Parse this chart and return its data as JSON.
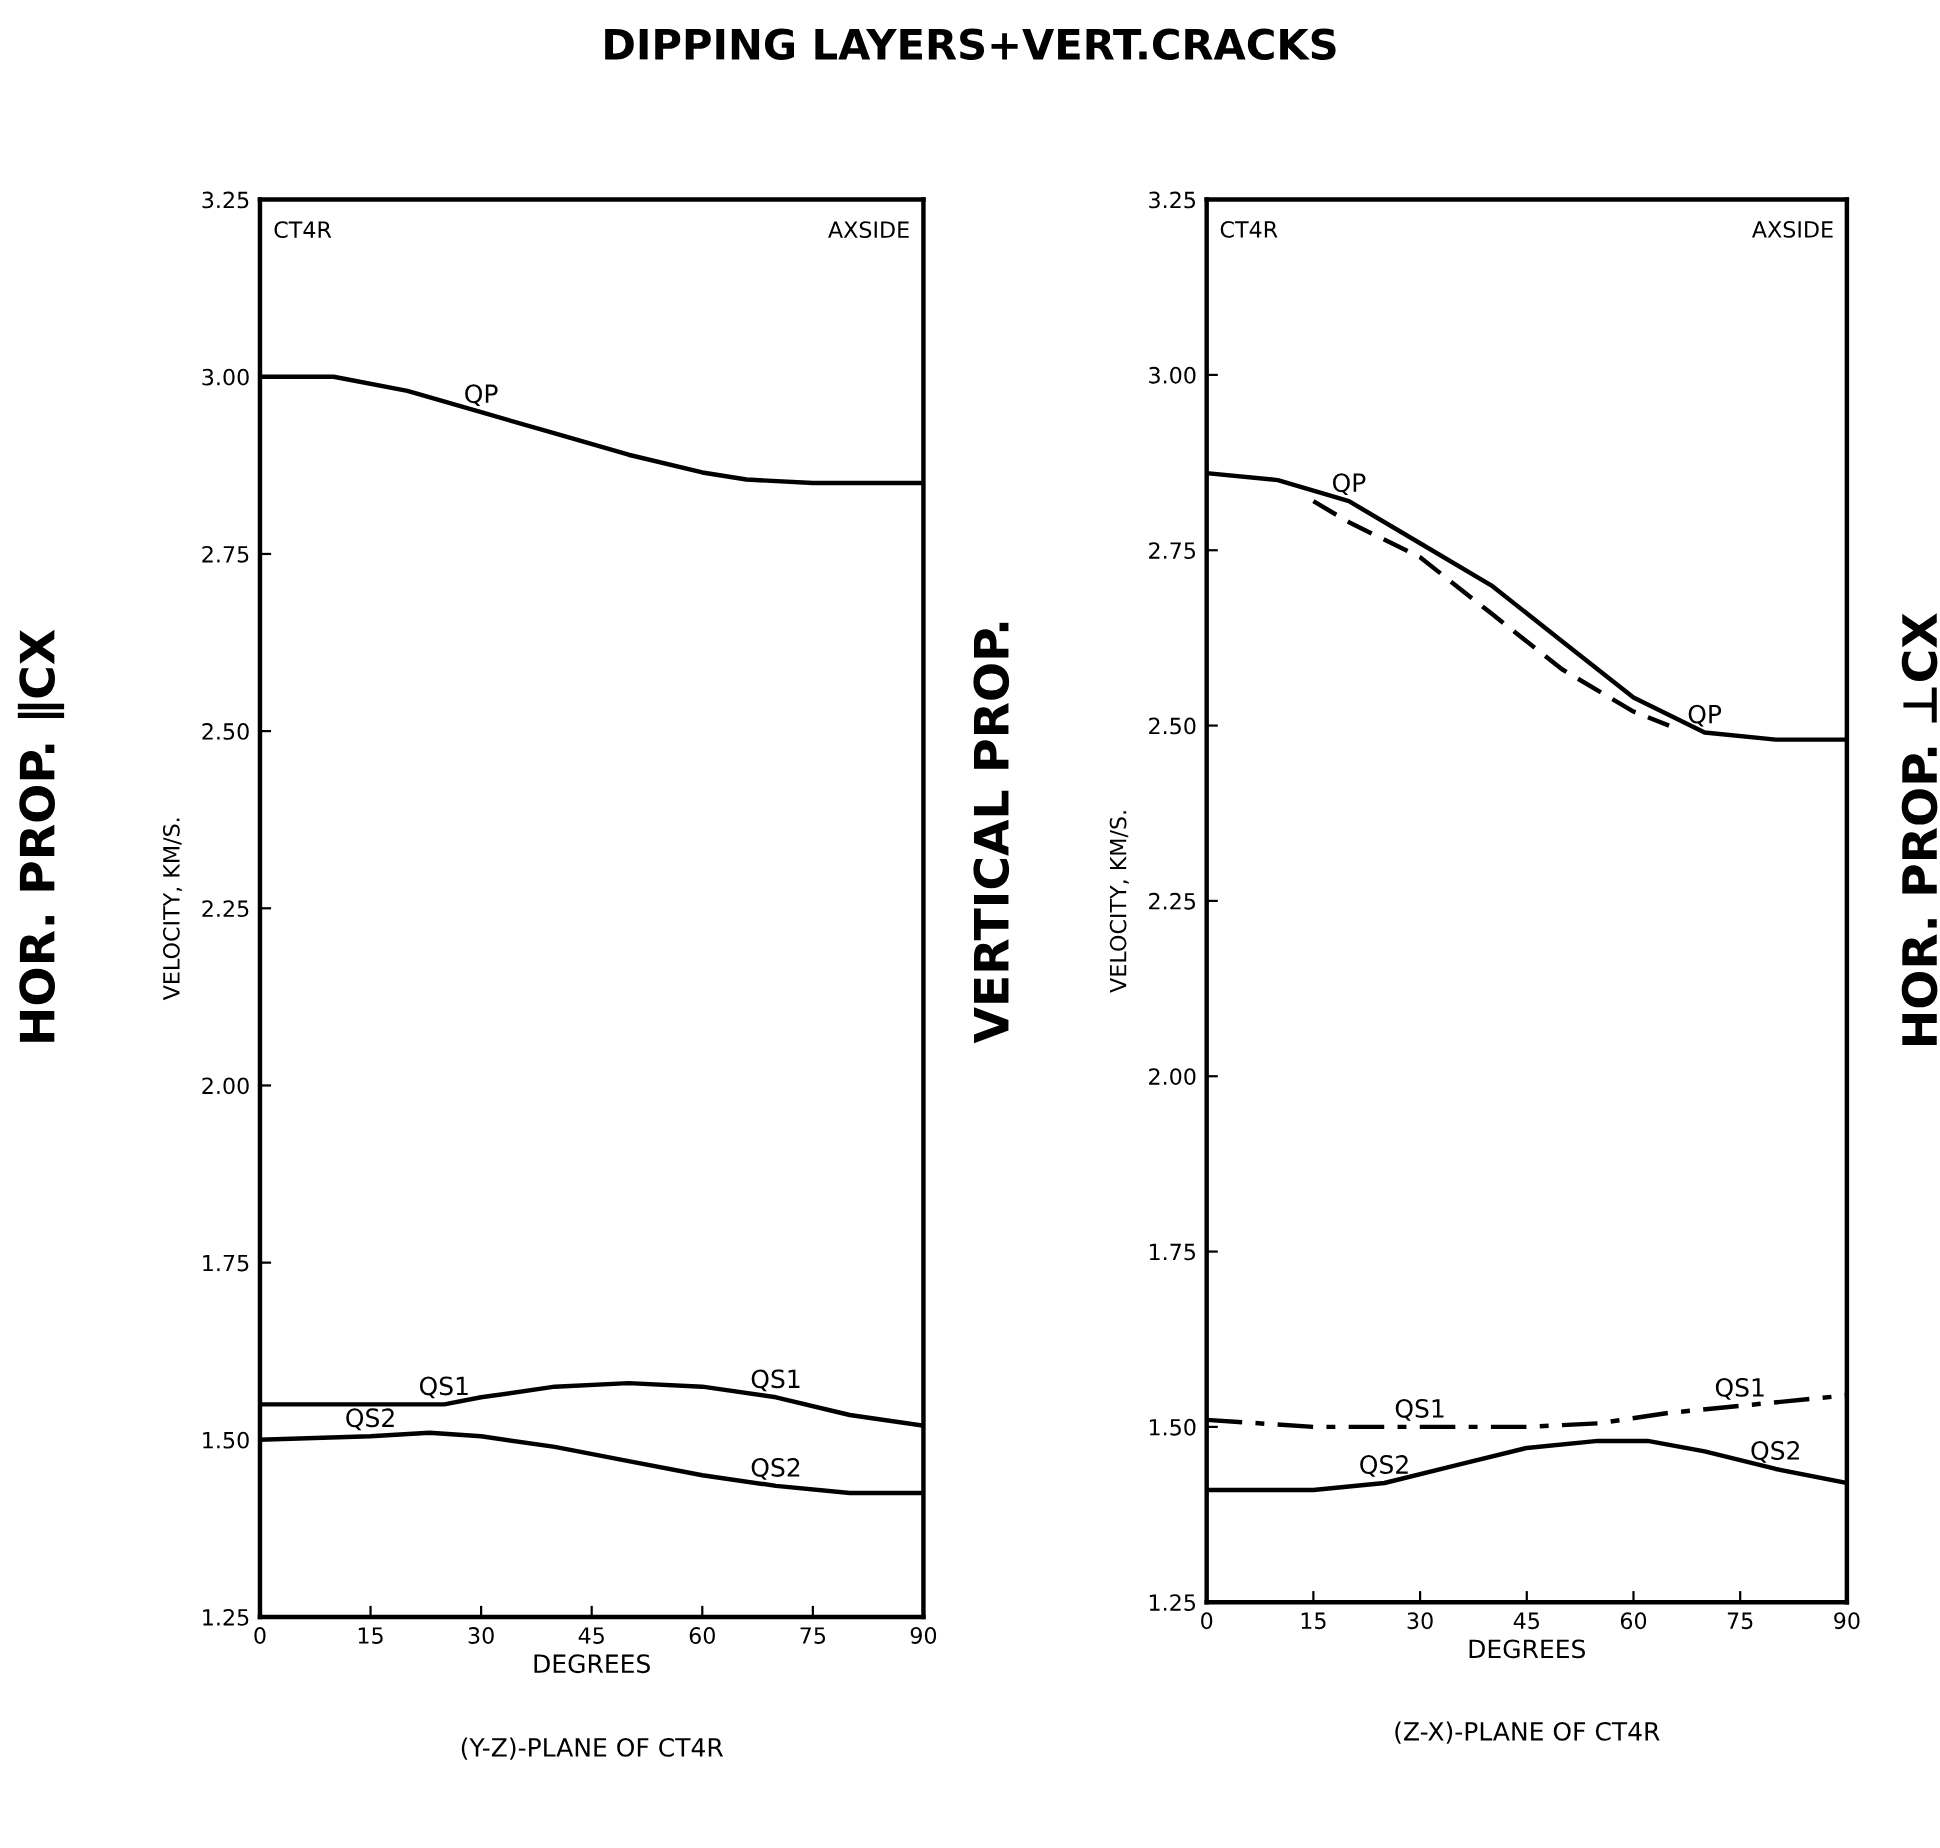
{
  "chart_data": [
    {
      "type": "line",
      "title": "DIPPING LAYERS+VERT.CRACKS",
      "xlabel": "DEGREES",
      "ylabel": "VELOCITY, KM/S.",
      "xlim": [
        0,
        90
      ],
      "xticks": [
        0,
        15,
        30,
        45,
        60,
        75,
        90
      ],
      "ylim": [
        1.25,
        3.25
      ],
      "yticks": [
        {
          "value": 1.25,
          "label": "1.25"
        },
        {
          "value": 1.5,
          "label": "1.50"
        },
        {
          "value": 1.75,
          "label": "1.75"
        },
        {
          "value": 2.0,
          "label": "2.00"
        },
        {
          "value": 2.25,
          "label": "2.25"
        },
        {
          "value": 2.5,
          "label": "2.50"
        },
        {
          "value": 2.75,
          "label": "2.75"
        },
        {
          "value": 3.0,
          "label": "3.00"
        },
        {
          "value": 3.25,
          "label": "3.25"
        }
      ],
      "grid": false,
      "legend": false,
      "series": [
        {
          "color": "#000000",
          "line_style": "solid",
          "x": [
            0,
            10,
            20,
            30,
            40,
            50,
            60,
            66,
            75,
            90
          ],
          "values": [
            3.0,
            3.0,
            2.98,
            2.95,
            2.92,
            2.89,
            2.865,
            2.855,
            2.85,
            2.85
          ]
        },
        {
          "color": "#000000",
          "line_style": "solid",
          "x": [
            0,
            25,
            30,
            40,
            50,
            60,
            70,
            80,
            90
          ],
          "values": [
            1.55,
            1.55,
            1.56,
            1.575,
            1.58,
            1.575,
            1.56,
            1.535,
            1.52
          ]
        },
        {
          "color": "#000000",
          "line_style": "solid",
          "x": [
            0,
            15,
            23,
            30,
            40,
            50,
            60,
            70,
            80,
            90
          ],
          "values": [
            1.5,
            1.505,
            1.51,
            1.505,
            1.49,
            1.47,
            1.45,
            1.435,
            1.425,
            1.425
          ]
        }
      ],
      "annotations": [
        "CT4R",
        "AXSIDE",
        "HOR. PROP. ∥CX",
        "(Y-Z)-PLANE OF CT4R",
        {
          "text": "QP",
          "x": 30,
          "y": 2.95
        },
        {
          "text": "QS1",
          "x": 25,
          "y": 1.55
        },
        {
          "text": "QS2",
          "x": 15,
          "y": 1.505
        },
        {
          "text": "QS1",
          "x": 70,
          "y": 1.56
        },
        {
          "text": "QS2",
          "x": 70,
          "y": 1.435
        }
      ]
    },
    {
      "type": "line",
      "xlabel": "DEGREES",
      "ylabel": "VELOCITY, KM/S.",
      "xlim": [
        0,
        90
      ],
      "xticks": [
        0,
        15,
        30,
        45,
        60,
        75,
        90
      ],
      "ylim": [
        1.25,
        3.25
      ],
      "yticks": [
        {
          "value": 1.25,
          "label": "1.25"
        },
        {
          "value": 1.5,
          "label": "1.50"
        },
        {
          "value": 1.75,
          "label": "1.75"
        },
        {
          "value": 2.0,
          "label": "2.00"
        },
        {
          "value": 2.25,
          "label": "2.25"
        },
        {
          "value": 2.5,
          "label": "2.50"
        },
        {
          "value": 2.75,
          "label": "2.75"
        },
        {
          "value": 3.0,
          "label": "3.00"
        },
        {
          "value": 3.25,
          "label": "3.25"
        }
      ],
      "grid": false,
      "legend": false,
      "series": [
        {
          "color": "#000000",
          "line_style": "solid",
          "x": [
            0,
            10,
            20,
            30,
            40,
            50,
            60,
            70,
            80,
            90
          ],
          "values": [
            2.86,
            2.85,
            2.82,
            2.76,
            2.7,
            2.62,
            2.54,
            2.49,
            2.48,
            2.48
          ]
        },
        {
          "color": "#000000",
          "line_style": "dashed",
          "x": [
            15,
            20,
            30,
            40,
            50,
            60,
            65
          ],
          "values": [
            2.82,
            2.79,
            2.74,
            2.66,
            2.58,
            2.52,
            2.5
          ]
        },
        {
          "color": "#000000",
          "line_style": "dashdot",
          "x": [
            0,
            15,
            30,
            45,
            55,
            65,
            75,
            90
          ],
          "values": [
            1.51,
            1.5,
            1.5,
            1.5,
            1.505,
            1.52,
            1.53,
            1.545
          ]
        },
        {
          "color": "#000000",
          "line_style": "solid",
          "x": [
            0,
            15,
            25,
            35,
            45,
            55,
            62,
            70,
            80,
            90
          ],
          "values": [
            1.41,
            1.41,
            1.42,
            1.445,
            1.47,
            1.48,
            1.48,
            1.465,
            1.44,
            1.42
          ]
        }
      ],
      "annotations": [
        "CT4R",
        "AXSIDE",
        "VERTICAL PROP.",
        "(Z-X)-PLANE OF CT4R",
        "HOR. PROP. ⊥CX",
        {
          "text": "QP",
          "x": 20,
          "y": 2.82
        },
        {
          "text": "QP",
          "x": 70,
          "y": 2.49
        },
        {
          "text": "QS1",
          "x": 30,
          "y": 1.5
        },
        {
          "text": "QS2",
          "x": 25,
          "y": 1.42
        },
        {
          "text": "QS1",
          "x": 75,
          "y": 1.53
        },
        {
          "text": "QS2",
          "x": 80,
          "y": 1.44
        }
      ]
    }
  ]
}
